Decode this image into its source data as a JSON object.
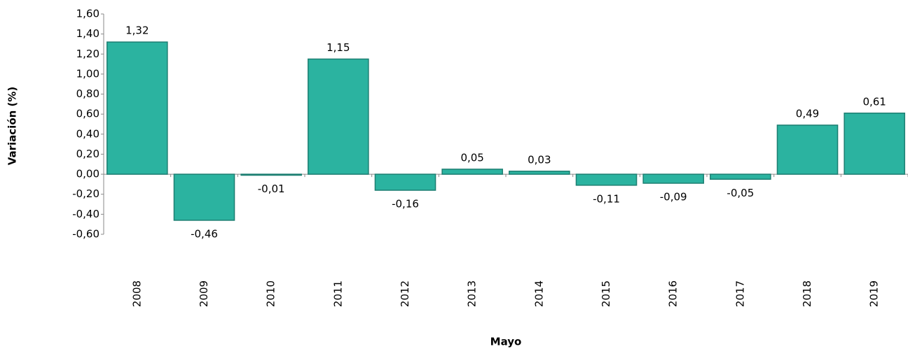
{
  "chart_data": {
    "type": "bar",
    "y_label": "Variación (%)",
    "x_label": "Mayo",
    "categories": [
      "2008",
      "2009",
      "2010",
      "2011",
      "2012",
      "2013",
      "2014",
      "2015",
      "2016",
      "2017",
      "2018",
      "2019"
    ],
    "values": [
      1.32,
      -0.46,
      -0.01,
      1.15,
      -0.16,
      0.05,
      0.03,
      -0.11,
      -0.09,
      -0.05,
      0.49,
      0.61
    ],
    "value_labels": [
      "1,32",
      "-0,46",
      "-0,01",
      "1,15",
      "-0,16",
      "0,05",
      "0,03",
      "-0,11",
      "-0,09",
      "-0,05",
      "0,49",
      "0,61"
    ],
    "color": "#2bb3a0",
    "ylim": [
      -0.6,
      1.6
    ],
    "yticks": [
      {
        "value": 1.6,
        "label": "1,60"
      },
      {
        "value": 1.4,
        "label": "1,40"
      },
      {
        "value": 1.2,
        "label": "1,20"
      },
      {
        "value": 1.0,
        "label": "1,00"
      },
      {
        "value": 0.8,
        "label": "0,80"
      },
      {
        "value": 0.6,
        "label": "0,60"
      },
      {
        "value": 0.4,
        "label": "0,40"
      },
      {
        "value": 0.2,
        "label": "0,20"
      },
      {
        "value": 0.0,
        "label": "0,00"
      },
      {
        "value": -0.2,
        "label": "-0,20"
      },
      {
        "value": -0.4,
        "label": "-0,40"
      },
      {
        "value": -0.6,
        "label": "-0,60"
      }
    ],
    "grid": false
  }
}
